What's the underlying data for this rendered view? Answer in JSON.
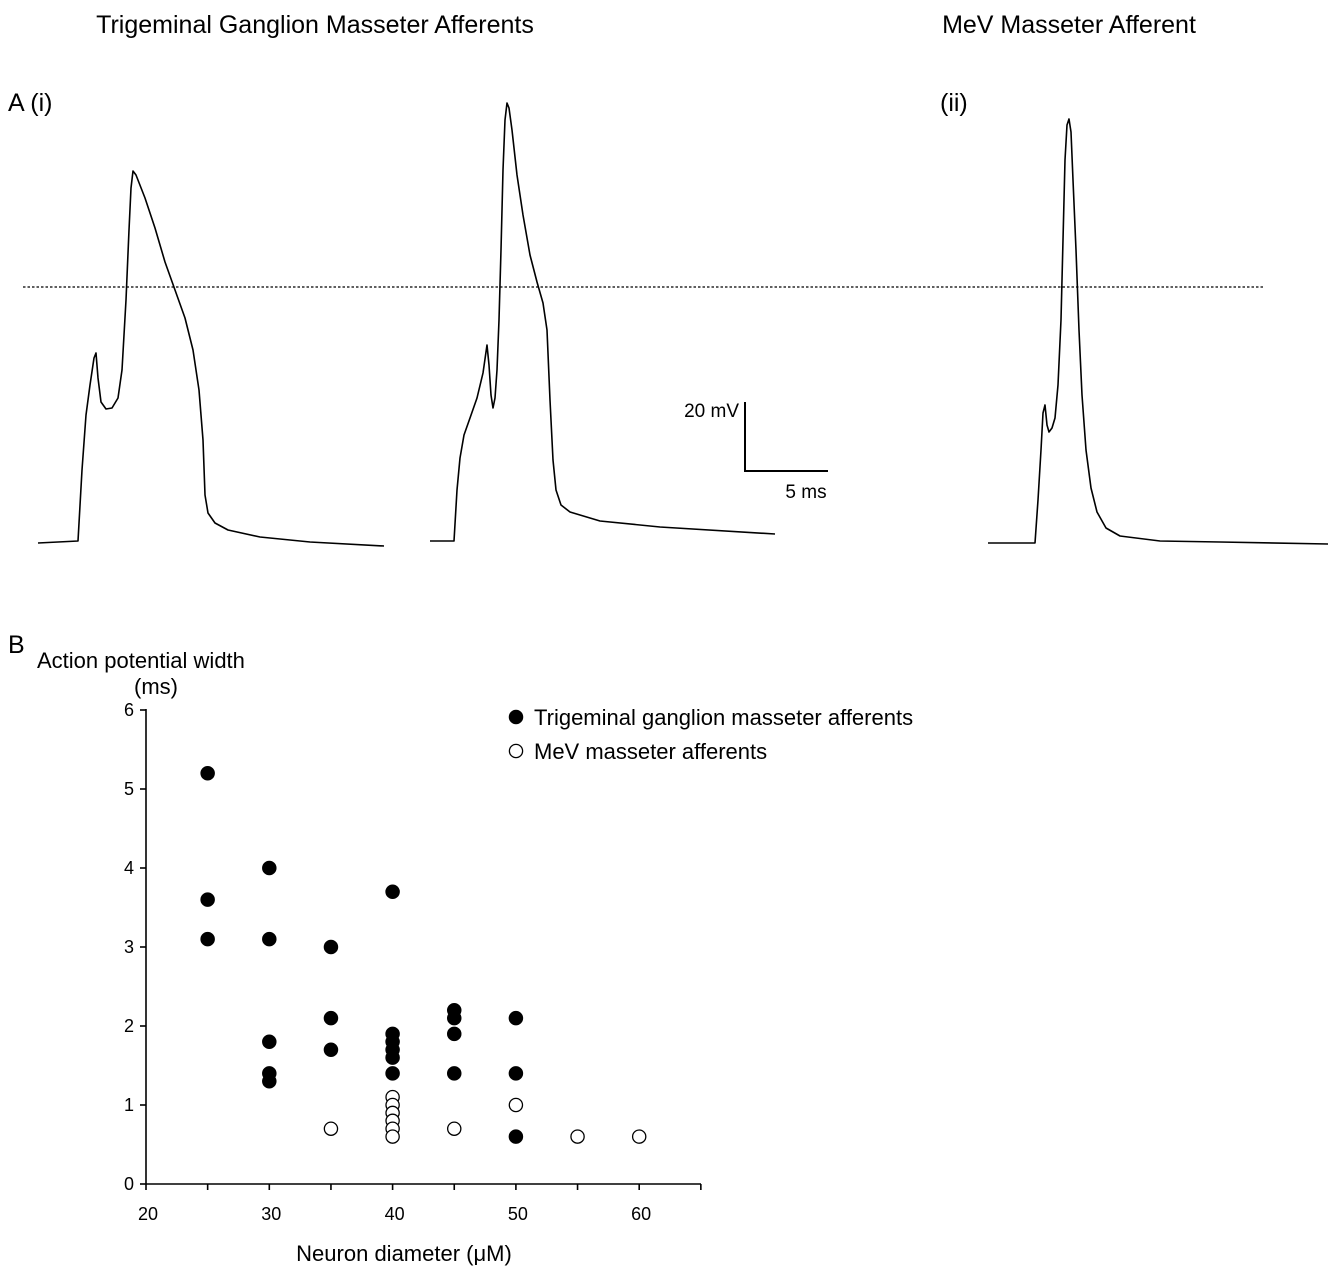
{
  "titles": {
    "left": "Trigeminal Ganglion Masseter Afferents",
    "right": "MeV Masseter Afferent"
  },
  "panels": {
    "a": "A (i)",
    "a_ii": "(ii)",
    "b": "B"
  },
  "scale_bar": {
    "voltage": "20 mV",
    "time": "5 ms"
  },
  "chart_data": [
    {
      "type": "line",
      "title": "",
      "description_panel": "A",
      "traces": [
        "trace-1",
        "trace-2",
        "trace-3"
      ],
      "reference_line": "dotted"
    },
    {
      "type": "scatter",
      "ylabel": "Action potential width",
      "ylabel_unit": "(ms)",
      "xlabel": "Neuron diameter (μM)",
      "xlim": [
        20,
        65
      ],
      "ylim": [
        0,
        6
      ],
      "xticks": [
        20,
        30,
        40,
        50,
        60
      ],
      "yticks": [
        0,
        1,
        2,
        3,
        4,
        5,
        6
      ],
      "grid": false,
      "legend_position": "top-right",
      "series": [
        {
          "name": "Trigeminal ganglion masseter afferents",
          "marker": "filled-circle",
          "color": "#000000",
          "points": [
            [
              25,
              5.2
            ],
            [
              25,
              3.6
            ],
            [
              25,
              3.1
            ],
            [
              30,
              4.0
            ],
            [
              30,
              3.1
            ],
            [
              30,
              1.8
            ],
            [
              30,
              1.4
            ],
            [
              30,
              1.3
            ],
            [
              35,
              3.0
            ],
            [
              35,
              2.1
            ],
            [
              35,
              1.7
            ],
            [
              40,
              3.7
            ],
            [
              40,
              1.9
            ],
            [
              40,
              1.8
            ],
            [
              40,
              1.7
            ],
            [
              40,
              1.6
            ],
            [
              40,
              1.4
            ],
            [
              45,
              2.2
            ],
            [
              45,
              2.1
            ],
            [
              45,
              1.9
            ],
            [
              45,
              1.4
            ],
            [
              50,
              2.1
            ],
            [
              50,
              1.4
            ],
            [
              50,
              0.6
            ]
          ]
        },
        {
          "name": "MeV masseter afferents",
          "marker": "open-circle",
          "color": "#000000",
          "points": [
            [
              35,
              0.7
            ],
            [
              40,
              1.1
            ],
            [
              40,
              1.0
            ],
            [
              40,
              0.9
            ],
            [
              40,
              0.8
            ],
            [
              40,
              0.7
            ],
            [
              40,
              0.6
            ],
            [
              45,
              0.7
            ],
            [
              50,
              1.0
            ],
            [
              55,
              0.6
            ],
            [
              60,
              0.6
            ]
          ]
        }
      ]
    }
  ]
}
